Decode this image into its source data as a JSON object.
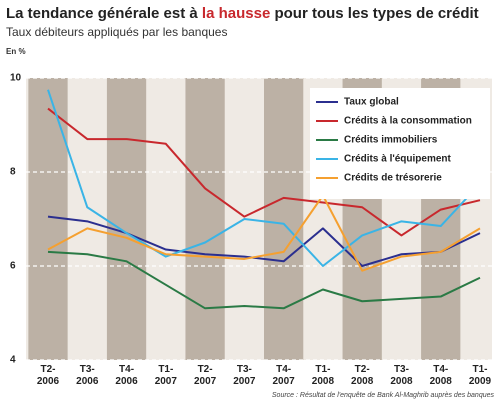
{
  "chart_data": {
    "type": "line",
    "title": [
      "La tendance générale est à ",
      "la hausse",
      " pour tous les types de crédit"
    ],
    "subtitle": "Taux débiteurs appliqués par les banques",
    "unit_label": "En %",
    "source": "Source : Résultat de l'enquête de Bank Al-Maghrib auprès des banques",
    "categories": [
      "T2-\n2006",
      "T3-\n2006",
      "T4-\n2006",
      "T1-\n2007",
      "T2-\n2007",
      "T3-\n2007",
      "T4-\n2007",
      "T1-\n2008",
      "T2-\n2008",
      "T3-\n2008",
      "T4-\n2008",
      "T1-\n2009"
    ],
    "series": [
      {
        "name": "Taux global",
        "color": "#2b2f8f",
        "values": [
          7.05,
          6.95,
          6.7,
          6.35,
          6.25,
          6.2,
          6.1,
          6.8,
          6.0,
          6.25,
          6.3,
          6.7
        ]
      },
      {
        "name": "Crédits à la consommation",
        "color": "#c8282d",
        "values": [
          9.35,
          8.7,
          8.7,
          8.6,
          7.65,
          7.05,
          7.45,
          7.35,
          7.25,
          6.65,
          7.2,
          7.4
        ]
      },
      {
        "name": "Crédits immobiliers",
        "color": "#2a7a45",
        "values": [
          6.3,
          6.25,
          6.1,
          5.6,
          5.1,
          5.15,
          5.1,
          5.5,
          5.25,
          5.3,
          5.35,
          5.75
        ]
      },
      {
        "name": "Crédits à l'équipement",
        "color": "#3ab4e6",
        "values": [
          9.75,
          7.25,
          6.7,
          6.2,
          6.5,
          7.0,
          6.9,
          6.0,
          6.65,
          6.95,
          6.85,
          7.75
        ]
      },
      {
        "name": "Crédits de trésorerie",
        "color": "#f5a030",
        "values": [
          6.35,
          6.8,
          6.6,
          6.25,
          6.2,
          6.15,
          6.3,
          7.5,
          5.9,
          6.2,
          6.3,
          6.8
        ]
      }
    ],
    "ylim": [
      4,
      10
    ],
    "yticks": [
      4,
      6,
      8,
      10
    ],
    "grid": true,
    "legend": "upper right"
  }
}
